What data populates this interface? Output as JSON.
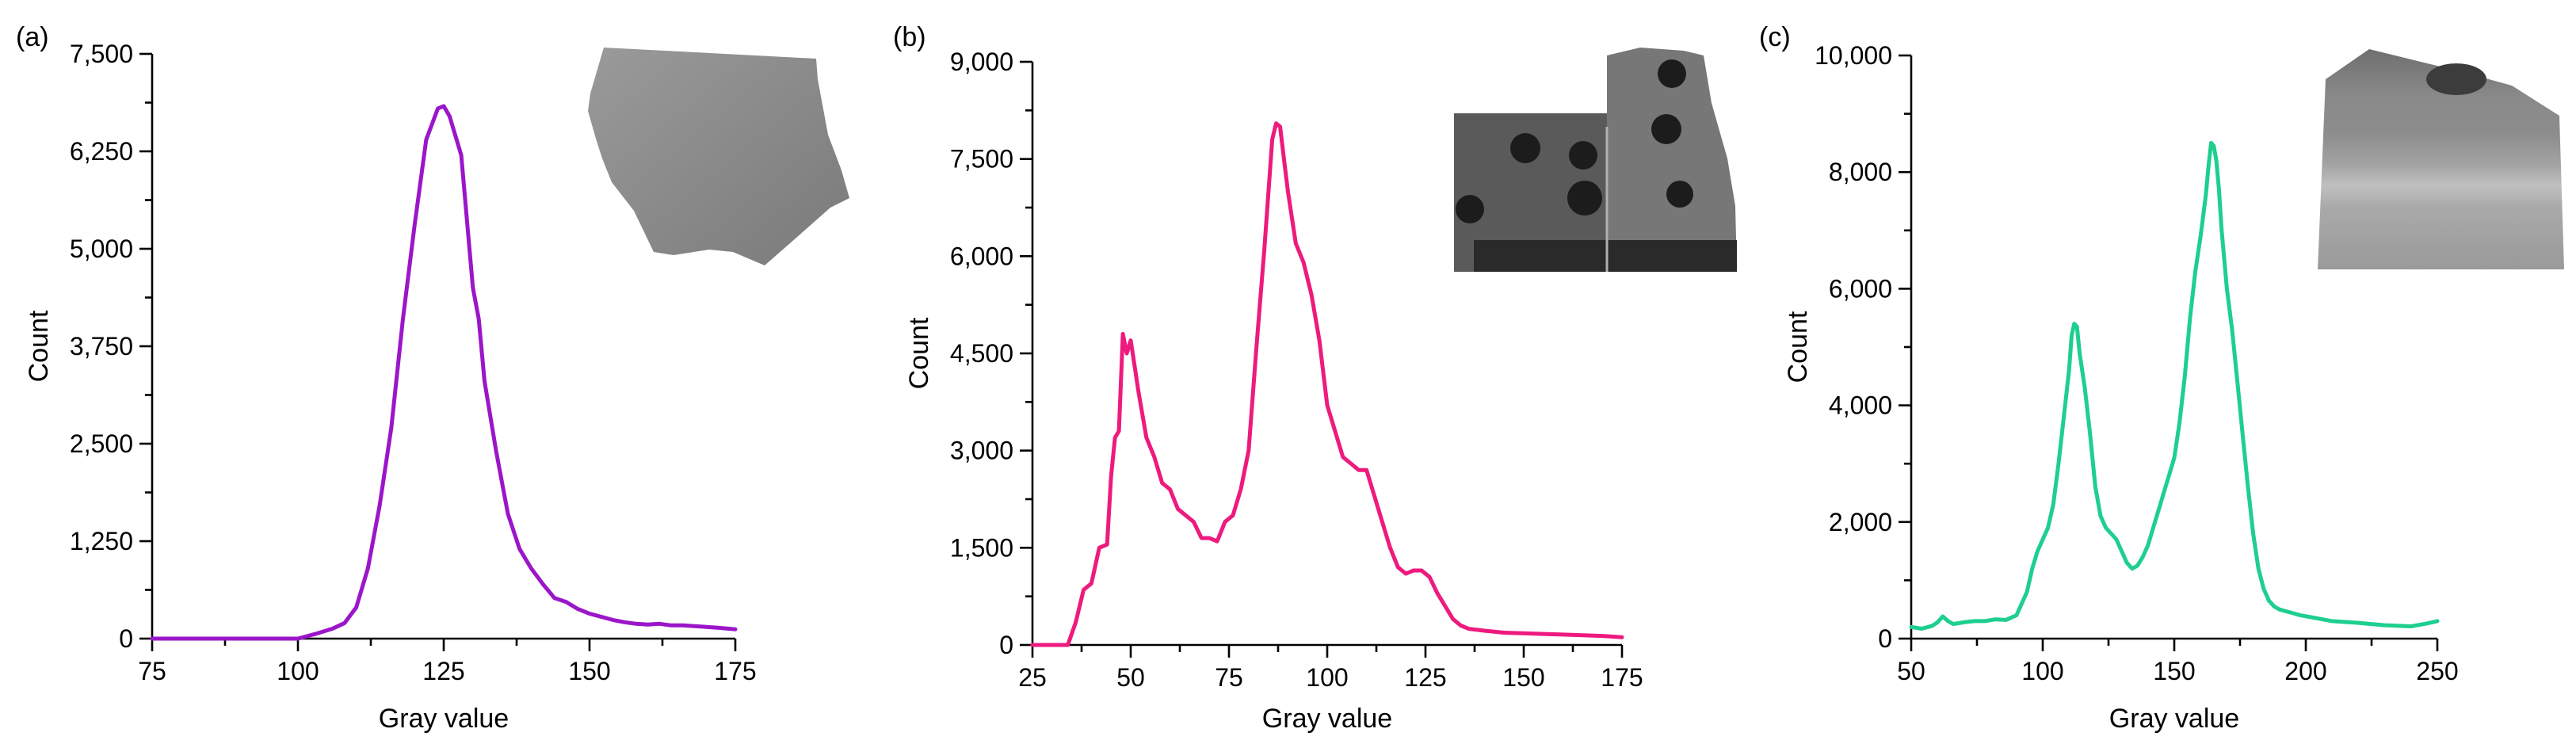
{
  "chart_data": [
    {
      "panel": "(a)",
      "type": "line",
      "xlabel": "Gray value",
      "ylabel": "Count",
      "xlim": [
        75,
        175
      ],
      "ylim": [
        0,
        7500
      ],
      "xticks": [
        75,
        100,
        125,
        150,
        175
      ],
      "yticks": [
        0,
        1250,
        2500,
        3750,
        5000,
        6250,
        7500
      ],
      "xtick_labels": [
        "75",
        "100",
        "125",
        "150",
        "175"
      ],
      "ytick_labels": [
        "0",
        "1,250",
        "2,500",
        "3,750",
        "5,000",
        "6,250",
        "7,500"
      ],
      "grid": false,
      "color": "#9b16c9",
      "inset_image": "gray-sample-a",
      "series": [
        {
          "x": [
            75,
            100,
            103,
            106,
            108,
            110,
            112,
            114,
            116,
            118,
            120,
            122,
            124,
            125,
            126,
            128,
            130,
            131,
            132,
            134,
            136,
            138,
            140,
            142,
            144,
            146,
            148,
            150,
            152,
            154,
            156,
            158,
            160,
            162,
            164,
            166,
            168,
            170,
            172,
            175
          ],
          "y": [
            0,
            0,
            60,
            130,
            200,
            400,
            900,
            1700,
            2700,
            4100,
            5300,
            6400,
            6800,
            6830,
            6700,
            6200,
            4500,
            4100,
            3300,
            2400,
            1600,
            1150,
            900,
            700,
            520,
            470,
            380,
            320,
            280,
            240,
            210,
            190,
            180,
            190,
            170,
            170,
            160,
            150,
            140,
            120
          ]
        }
      ]
    },
    {
      "panel": "(b)",
      "type": "line",
      "xlabel": "Gray value",
      "ylabel": "Count",
      "xlim": [
        25,
        175
      ],
      "ylim": [
        0,
        9000
      ],
      "xticks": [
        25,
        50,
        75,
        100,
        125,
        150,
        175
      ],
      "yticks": [
        0,
        1500,
        3000,
        4500,
        6000,
        7500,
        9000
      ],
      "xtick_labels": [
        "25",
        "50",
        "75",
        "100",
        "125",
        "150",
        "175"
      ],
      "ytick_labels": [
        "0",
        "1,500",
        "3,000",
        "4,500",
        "6,000",
        "7,500",
        "9,000"
      ],
      "grid": false,
      "color": "#ee1a7e",
      "inset_image": "dark-sample-b",
      "series": [
        {
          "x": [
            25,
            34,
            36,
            38,
            40,
            42,
            44,
            45,
            46,
            47,
            48,
            49,
            50,
            51,
            52,
            54,
            56,
            58,
            60,
            62,
            64,
            66,
            68,
            70,
            72,
            74,
            76,
            78,
            80,
            82,
            84,
            86,
            87,
            88,
            89,
            90,
            92,
            94,
            96,
            98,
            100,
            102,
            104,
            106,
            108,
            110,
            112,
            114,
            116,
            118,
            120,
            122,
            124,
            126,
            128,
            130,
            132,
            134,
            136,
            140,
            145,
            150,
            155,
            160,
            165,
            170,
            175
          ],
          "y": [
            0,
            0,
            350,
            850,
            950,
            1500,
            1550,
            2600,
            3200,
            3300,
            4800,
            4500,
            4700,
            4300,
            3900,
            3200,
            2900,
            2500,
            2400,
            2100,
            2000,
            1900,
            1650,
            1650,
            1600,
            1900,
            2000,
            2400,
            3000,
            4600,
            6100,
            7800,
            8050,
            8000,
            7500,
            7000,
            6200,
            5900,
            5400,
            4700,
            3700,
            3300,
            2900,
            2800,
            2700,
            2700,
            2300,
            1900,
            1500,
            1200,
            1100,
            1150,
            1150,
            1050,
            800,
            600,
            400,
            300,
            250,
            220,
            190,
            180,
            170,
            160,
            150,
            140,
            120
          ]
        }
      ]
    },
    {
      "panel": "(c)",
      "type": "line",
      "xlabel": "Gray value",
      "ylabel": "Count",
      "xlim": [
        50,
        250
      ],
      "ylim": [
        0,
        10000
      ],
      "xticks": [
        50,
        100,
        150,
        200,
        250
      ],
      "yticks": [
        0,
        2000,
        4000,
        6000,
        8000,
        10000
      ],
      "xtick_labels": [
        "50",
        "100",
        "150",
        "200",
        "250"
      ],
      "ytick_labels": [
        "0",
        "2,000",
        "4,000",
        "6,000",
        "8,000",
        "10,000"
      ],
      "grid": false,
      "color": "#1ecf8f",
      "inset_image": "banded-sample-c",
      "series": [
        {
          "x": [
            50,
            54,
            58,
            60,
            62,
            64,
            66,
            70,
            74,
            78,
            82,
            86,
            90,
            94,
            96,
            98,
            100,
            102,
            104,
            106,
            108,
            110,
            111,
            112,
            113,
            114,
            116,
            118,
            120,
            122,
            124,
            126,
            128,
            130,
            132,
            134,
            136,
            138,
            140,
            142,
            144,
            146,
            148,
            150,
            152,
            154,
            156,
            158,
            160,
            162,
            163,
            164,
            165,
            166,
            167,
            168,
            170,
            172,
            174,
            176,
            178,
            180,
            182,
            184,
            186,
            188,
            190,
            194,
            198,
            204,
            210,
            220,
            230,
            240,
            246,
            250
          ],
          "y": [
            200,
            170,
            220,
            280,
            380,
            300,
            250,
            280,
            300,
            300,
            330,
            320,
            400,
            800,
            1200,
            1500,
            1700,
            1900,
            2300,
            3000,
            3800,
            4600,
            5200,
            5400,
            5350,
            4900,
            4300,
            3500,
            2600,
            2100,
            1900,
            1800,
            1700,
            1500,
            1300,
            1200,
            1250,
            1400,
            1600,
            1900,
            2200,
            2500,
            2800,
            3100,
            3700,
            4500,
            5500,
            6300,
            6900,
            7600,
            8100,
            8500,
            8450,
            8200,
            7700,
            7000,
            6000,
            5300,
            4400,
            3500,
            2600,
            1800,
            1200,
            850,
            650,
            550,
            500,
            450,
            400,
            350,
            300,
            270,
            230,
            210,
            260,
            300
          ]
        }
      ]
    }
  ]
}
